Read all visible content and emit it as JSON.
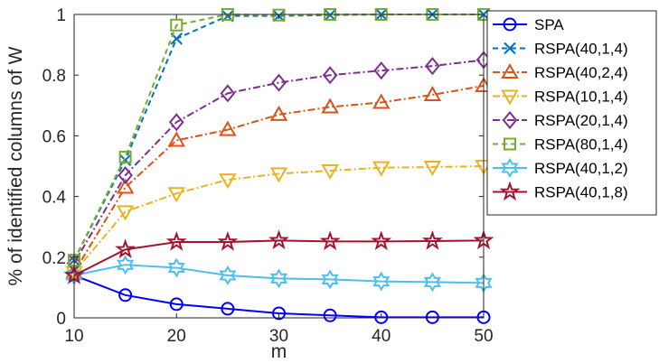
{
  "chart_data": {
    "type": "line",
    "title": "",
    "xlabel": "m",
    "ylabel": "% of identified columns of W",
    "xlim": [
      10,
      50
    ],
    "ylim": [
      0,
      1
    ],
    "x": [
      10,
      15,
      20,
      25,
      30,
      35,
      40,
      45,
      50
    ],
    "xticks": [
      "10",
      "20",
      "30",
      "40",
      "50"
    ],
    "yticks": [
      "0",
      "0.2",
      "0.4",
      "0.6",
      "0.8",
      "1"
    ],
    "grid": false,
    "legend_position": "right",
    "series": [
      {
        "name": "SPA",
        "color": "#0000ff",
        "marker": "circle",
        "dash": "solid",
        "values": [
          0.14,
          0.075,
          0.045,
          0.03,
          0.015,
          0.008,
          0.002,
          0.002,
          0.002
        ]
      },
      {
        "name": "RSPA(40,1,4)",
        "color": "#0072bd",
        "marker": "x",
        "dash": "dash",
        "values": [
          0.19,
          0.52,
          0.92,
          0.995,
          0.995,
          0.998,
          1.0,
          1.0,
          1.0
        ]
      },
      {
        "name": "RSPA(40,2,4)",
        "color": "#d95319",
        "marker": "triangle-up",
        "dash": "dashdot",
        "values": [
          0.15,
          0.43,
          0.585,
          0.62,
          0.67,
          0.695,
          0.71,
          0.735,
          0.765
        ]
      },
      {
        "name": "RSPA(10,1,4)",
        "color": "#edb120",
        "marker": "triangle-down",
        "dash": "dashdot",
        "values": [
          0.15,
          0.35,
          0.41,
          0.455,
          0.475,
          0.485,
          0.495,
          0.497,
          0.5
        ]
      },
      {
        "name": "RSPA(20,1,4)",
        "color": "#7e2f8e",
        "marker": "diamond",
        "dash": "dashdot",
        "values": [
          0.18,
          0.47,
          0.645,
          0.74,
          0.775,
          0.8,
          0.815,
          0.83,
          0.85
        ]
      },
      {
        "name": "RSPA(80,1,4)",
        "color": "#77ac30",
        "marker": "square",
        "dash": "dash",
        "values": [
          0.19,
          0.53,
          0.965,
          1.0,
          0.998,
          1.0,
          1.0,
          1.0,
          1.0
        ]
      },
      {
        "name": "RSPA(40,1,2)",
        "color": "#4dbeee",
        "marker": "hexagram",
        "dash": "solid",
        "values": [
          0.14,
          0.175,
          0.165,
          0.14,
          0.13,
          0.127,
          0.12,
          0.118,
          0.115
        ]
      },
      {
        "name": "RSPA(40,1,8)",
        "color": "#a2142f",
        "marker": "pentagram",
        "dash": "solid",
        "values": [
          0.14,
          0.225,
          0.25,
          0.25,
          0.255,
          0.252,
          0.252,
          0.253,
          0.255
        ]
      }
    ]
  }
}
